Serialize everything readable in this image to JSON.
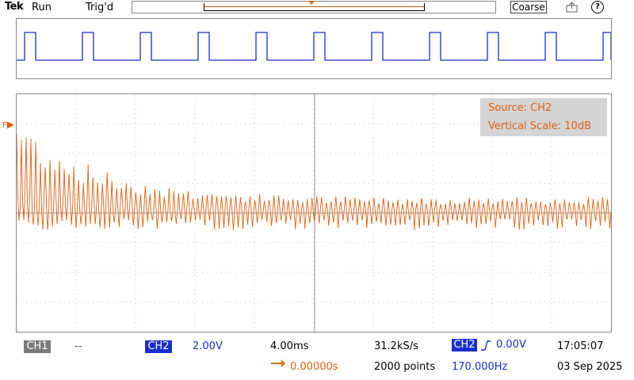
{
  "header": {
    "brand": "Tek",
    "run_state": "Run",
    "trigger_state": "Trig'd",
    "coarse_label": "Coarse",
    "help_label": "?"
  },
  "waveform_overlay": {
    "source_text": "Source: CH2",
    "scale_text": "Vertical Scale: 10dB",
    "marker_label": "F"
  },
  "status": {
    "ch1_label": "CH1",
    "ch1_value": "--",
    "ch2_label": "CH2",
    "ch2_scale": "2.00V",
    "timebase": "4.00ms",
    "sample_rate": "31.2kS/s",
    "trigger_source": "CH2",
    "trigger_level": "0.00V",
    "trigger_time": "17:05:07",
    "position": "0.00000s",
    "record_length": "2000 points",
    "frequency": "170.000Hz",
    "date": "03 Sep 2025"
  },
  "colors": {
    "ch1": "#1a2fd0",
    "ch2": "#e06010",
    "grid": "#9a9a9a"
  },
  "icons": [
    "save-icon",
    "help-icon",
    "trigger-slope-icon",
    "position-arrow-icon"
  ]
}
